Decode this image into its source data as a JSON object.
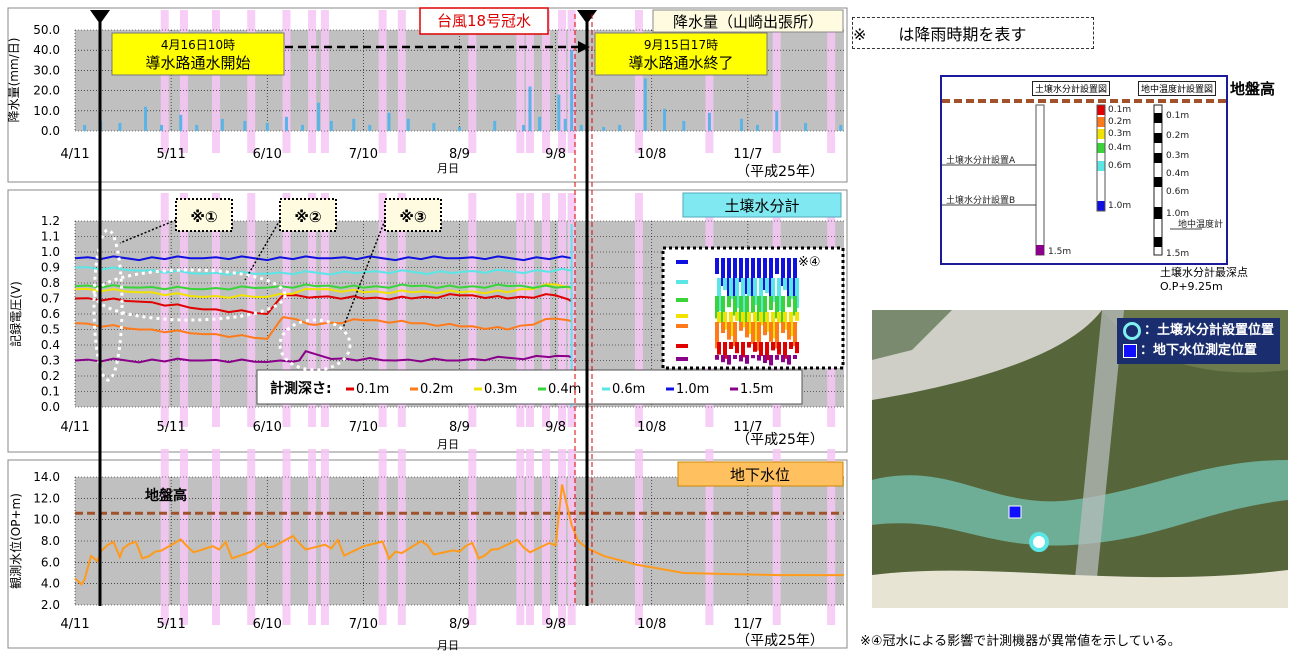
{
  "months": [
    "4/11",
    "5/11",
    "6/10",
    "7/10",
    "8/9",
    "9/8",
    "10/8",
    "11/7"
  ],
  "xlabel": "月日",
  "era_label": "（平成25年）",
  "typhoon_label": "台風18号冠水",
  "start_event": {
    "date": "4月16日10時",
    "text": "導水路通水開始"
  },
  "end_event": {
    "date": "9月15日17時",
    "text": "導水路通水終了"
  },
  "rain_periods_note": "※　　は降雨時期を表す",
  "colors": {
    "rain": "#5ab4e6",
    "rain_period": "#f4c6f4",
    "ground_level": "#a0522d",
    "groundwater": "#ff9a1a"
  },
  "chart_data": [
    {
      "type": "bar",
      "title": "降水量（山崎出張所）",
      "ylabel": "降水量(mm/日)",
      "xlabel": "月日",
      "yticks": [
        "50.0",
        "40.0",
        "30.0",
        "20.0",
        "10.0",
        "0.0"
      ],
      "ylim": [
        0,
        50
      ],
      "x_day_range": [
        0,
        240
      ],
      "values": [
        {
          "day": 3,
          "value": 3
        },
        {
          "day": 8,
          "value": 5
        },
        {
          "day": 14,
          "value": 4
        },
        {
          "day": 22,
          "value": 12
        },
        {
          "day": 27,
          "value": 3
        },
        {
          "day": 33,
          "value": 8
        },
        {
          "day": 38,
          "value": 3
        },
        {
          "day": 46,
          "value": 6
        },
        {
          "day": 53,
          "value": 5
        },
        {
          "day": 60,
          "value": 4
        },
        {
          "day": 66,
          "value": 7
        },
        {
          "day": 71,
          "value": 3
        },
        {
          "day": 76,
          "value": 14
        },
        {
          "day": 80,
          "value": 5
        },
        {
          "day": 87,
          "value": 6
        },
        {
          "day": 92,
          "value": 3
        },
        {
          "day": 98,
          "value": 9
        },
        {
          "day": 104,
          "value": 6
        },
        {
          "day": 112,
          "value": 4
        },
        {
          "day": 120,
          "value": 2
        },
        {
          "day": 131,
          "value": 5
        },
        {
          "day": 140,
          "value": 3
        },
        {
          "day": 142,
          "value": 22
        },
        {
          "day": 145,
          "value": 7
        },
        {
          "day": 151,
          "value": 18
        },
        {
          "day": 153,
          "value": 6
        },
        {
          "day": 155,
          "value": 40
        },
        {
          "day": 158,
          "value": 3
        },
        {
          "day": 165,
          "value": 2
        },
        {
          "day": 170,
          "value": 3
        },
        {
          "day": 178,
          "value": 26
        },
        {
          "day": 184,
          "value": 11
        },
        {
          "day": 190,
          "value": 5
        },
        {
          "day": 198,
          "value": 9
        },
        {
          "day": 208,
          "value": 6
        },
        {
          "day": 213,
          "value": 3
        },
        {
          "day": 219,
          "value": 10
        },
        {
          "day": 228,
          "value": 4
        },
        {
          "day": 239,
          "value": 3
        }
      ]
    },
    {
      "type": "line",
      "title": "土壌水分計",
      "ylabel": "記録電圧(V)",
      "xlabel": "月日",
      "yticks": [
        "1.2",
        "1.1",
        "1.0",
        "0.9",
        "0.8",
        "0.7",
        "0.6",
        "0.5",
        "0.4",
        "0.3",
        "0.2",
        "0.1",
        "0.0"
      ],
      "ylim": [
        0,
        1.2
      ],
      "legend_title": "計測深さ:",
      "series": [
        {
          "name": "0.1m",
          "color": "#e00000",
          "x": [
            0,
            20,
            40,
            60,
            65,
            75,
            90,
            105,
            120,
            135,
            150,
            155
          ],
          "y": [
            0.7,
            0.68,
            0.63,
            0.6,
            0.72,
            0.71,
            0.7,
            0.7,
            0.72,
            0.7,
            0.72,
            0.68
          ]
        },
        {
          "name": "0.2m",
          "color": "#ff7a1a",
          "x": [
            0,
            20,
            40,
            60,
            65,
            75,
            90,
            105,
            120,
            135,
            150,
            155
          ],
          "y": [
            0.54,
            0.5,
            0.47,
            0.44,
            0.58,
            0.53,
            0.56,
            0.54,
            0.52,
            0.5,
            0.57,
            0.55
          ]
        },
        {
          "name": "0.3m",
          "color": "#f2e200",
          "x": [
            0,
            20,
            40,
            60,
            75,
            90,
            105,
            120,
            135,
            150,
            155
          ],
          "y": [
            0.76,
            0.74,
            0.71,
            0.71,
            0.76,
            0.74,
            0.74,
            0.74,
            0.74,
            0.79,
            0.76
          ]
        },
        {
          "name": "0.4m",
          "color": "#3ad43a",
          "x": [
            0,
            20,
            40,
            60,
            75,
            90,
            105,
            120,
            135,
            150,
            155
          ],
          "y": [
            0.78,
            0.77,
            0.76,
            0.77,
            0.78,
            0.77,
            0.78,
            0.77,
            0.78,
            0.77,
            0.77
          ]
        },
        {
          "name": "0.6m",
          "color": "#5ae6e6",
          "x": [
            0,
            20,
            40,
            60,
            90,
            120,
            155
          ],
          "y": [
            0.9,
            0.88,
            0.86,
            0.86,
            0.87,
            0.87,
            0.88
          ]
        },
        {
          "name": "1.0m",
          "color": "#1010e0",
          "x": [
            0,
            40,
            80,
            120,
            155
          ],
          "y": [
            0.96,
            0.96,
            0.96,
            0.96,
            0.96
          ]
        },
        {
          "name": "1.5m",
          "color": "#8a008a",
          "x": [
            0,
            40,
            60,
            70,
            72,
            80,
            100,
            120,
            150,
            155
          ],
          "y": [
            0.3,
            0.3,
            0.29,
            0.3,
            0.36,
            0.31,
            0.3,
            0.3,
            0.33,
            0.32
          ]
        }
      ],
      "annotations": [
        "※①",
        "※②",
        "※③",
        "※④"
      ]
    },
    {
      "type": "line",
      "title": "地下水位",
      "ylabel": "観測水位(OP+m)",
      "xlabel": "月日",
      "yticks": [
        "14.0",
        "12.0",
        "10.0",
        "8.0",
        "6.0",
        "4.0",
        "2.0"
      ],
      "ylim": [
        2,
        14
      ],
      "ground_level": {
        "label": "地盤高",
        "value": 10.6
      },
      "series": [
        {
          "name": "地下水位",
          "color": "#ff9a1a",
          "x": [
            0,
            3,
            5,
            8,
            15,
            25,
            35,
            45,
            55,
            60,
            70,
            80,
            90,
            100,
            110,
            120,
            130,
            140,
            150,
            152,
            155,
            157,
            160,
            165,
            175,
            190,
            205,
            220,
            235,
            240
          ],
          "y": [
            4.5,
            4.4,
            6.6,
            7.0,
            7.3,
            7.0,
            7.5,
            7.2,
            7.0,
            7.4,
            7.8,
            7.3,
            7.5,
            7.0,
            7.6,
            7.0,
            7.2,
            7.4,
            7.6,
            13.3,
            9.5,
            8.0,
            7.3,
            6.6,
            5.8,
            5.0,
            4.9,
            4.8,
            4.8,
            4.8
          ]
        }
      ]
    }
  ],
  "schematic": {
    "title_left": "土壌水分計設置図",
    "title_right": "地中温度計設置図",
    "ground_label": "地盤高",
    "label_a": "土壌水分計設置A",
    "label_b": "土壌水分計設置B",
    "depths_left": [
      "0.1m",
      "0.2m",
      "0.3m",
      "0.4m",
      "0.6m",
      "1.0m"
    ],
    "depth_bottom": "1.5m",
    "depths_right": [
      "0.1m",
      "0.2m",
      "0.3m",
      "0.4m",
      "0.6m",
      "1.0m",
      "1.5m"
    ],
    "thermometer_label": "地中温度計",
    "deepest_label": "土壌水分計最深点",
    "deepest_value": "O.P+9.25m"
  },
  "photo_legend": {
    "item1": "：土壌水分計設置位置",
    "item2": "：地下水位測定位置"
  },
  "footnote": "※④冠水による影響で計測機器が異常値を示している。"
}
